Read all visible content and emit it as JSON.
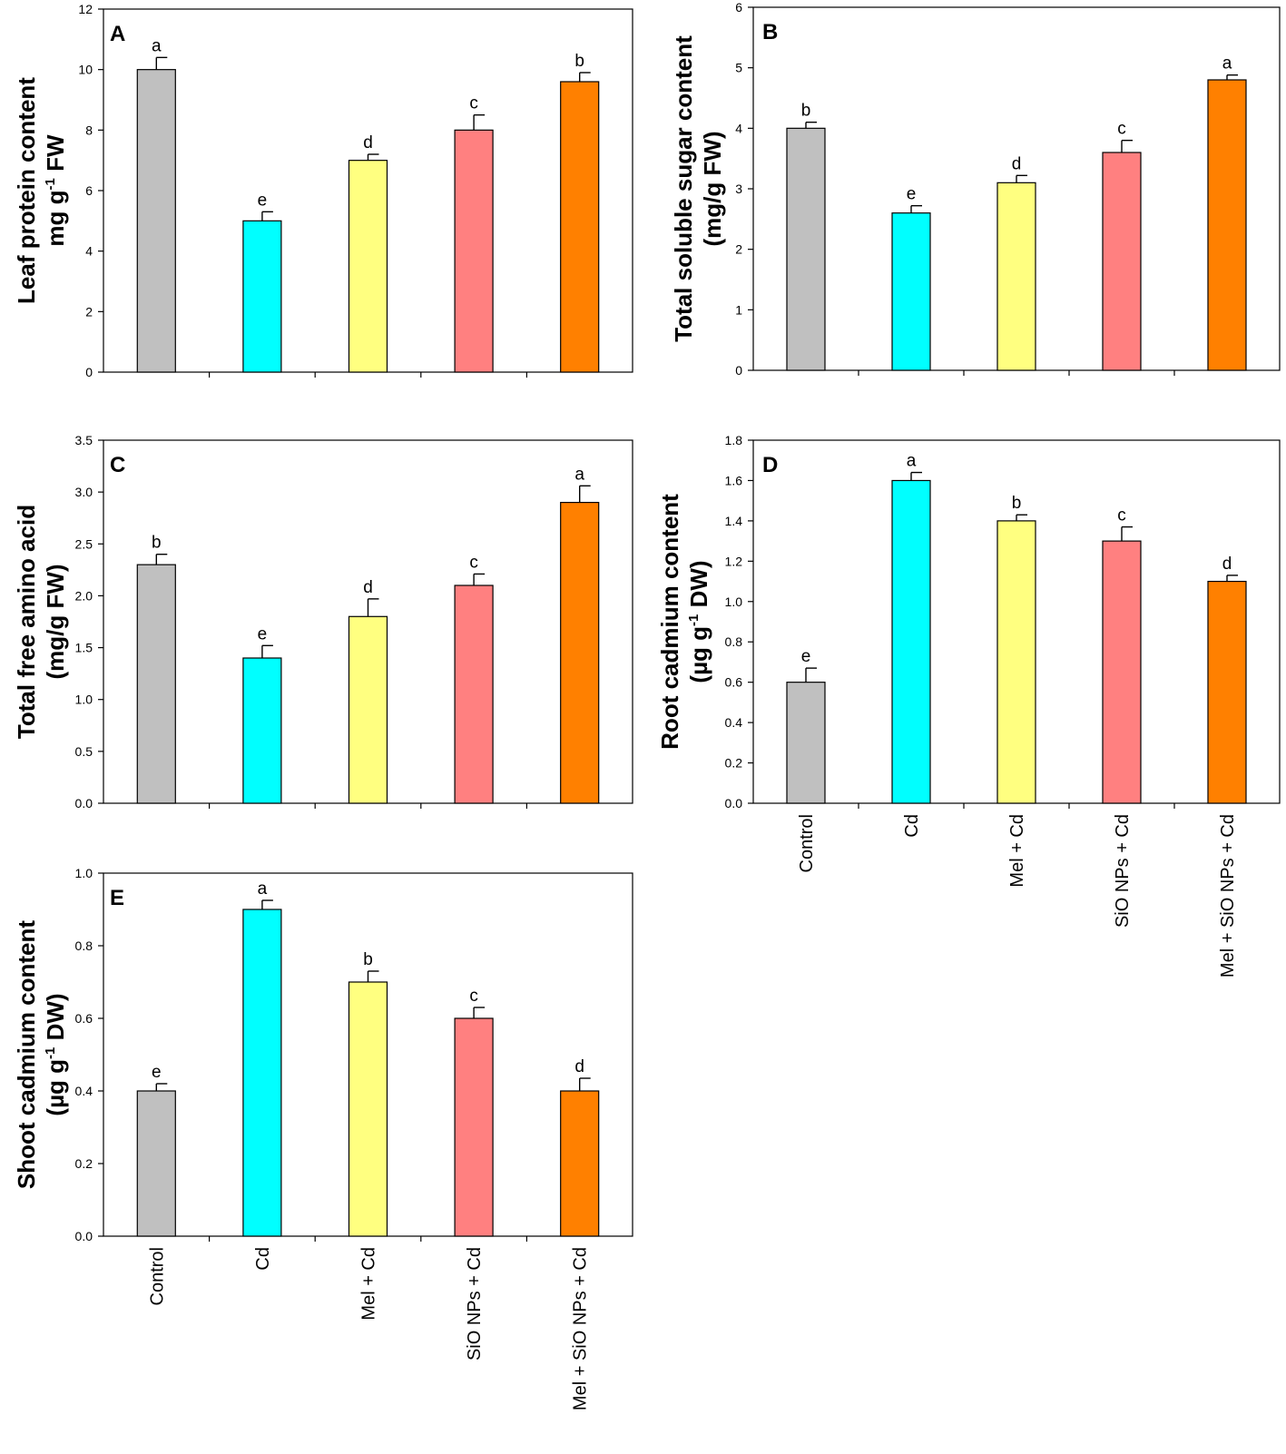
{
  "categories": [
    "Control",
    "Cd",
    "Mel + Cd",
    "SiO NPs + Cd",
    "Mel + SiO NPs + Cd"
  ],
  "colors": [
    "#c0c0c0",
    "#00ffff",
    "#ffff80",
    "#ff8080",
    "#ff8000"
  ],
  "chart_data": [
    {
      "type": "bar",
      "panel": "A",
      "ylabel_lines": [
        [
          "Leaf protein content"
        ],
        [
          "mg g",
          "-1",
          " FW"
        ]
      ],
      "ylim": [
        0,
        12
      ],
      "yticks": [
        0,
        2,
        4,
        6,
        8,
        10,
        12
      ],
      "decimals": 0,
      "values": [
        10.0,
        5.0,
        7.0,
        8.0,
        9.6
      ],
      "errors": [
        0.4,
        0.3,
        0.2,
        0.5,
        0.3
      ],
      "letters": [
        "a",
        "e",
        "d",
        "c",
        "b"
      ],
      "show_categories": false
    },
    {
      "type": "bar",
      "panel": "B",
      "ylabel_lines": [
        [
          "Total soluble sugar content"
        ],
        [
          "(mg/g FW)"
        ]
      ],
      "ylim": [
        0,
        6
      ],
      "yticks": [
        0,
        1,
        2,
        3,
        4,
        5,
        6
      ],
      "decimals": 0,
      "values": [
        4.0,
        2.6,
        3.1,
        3.6,
        4.8
      ],
      "errors": [
        0.1,
        0.12,
        0.12,
        0.2,
        0.08
      ],
      "letters": [
        "b",
        "e",
        "d",
        "c",
        "a"
      ],
      "show_categories": false
    },
    {
      "type": "bar",
      "panel": "C",
      "ylabel_lines": [
        [
          "Total free amino acid"
        ],
        [
          "(mg/g FW)"
        ]
      ],
      "ylim": [
        0,
        3.5
      ],
      "yticks": [
        0.0,
        0.5,
        1.0,
        1.5,
        2.0,
        2.5,
        3.0,
        3.5
      ],
      "decimals": 1,
      "values": [
        2.3,
        1.4,
        1.8,
        2.1,
        2.9
      ],
      "errors": [
        0.1,
        0.12,
        0.17,
        0.11,
        0.16
      ],
      "letters": [
        "b",
        "e",
        "d",
        "c",
        "a"
      ],
      "show_categories": false
    },
    {
      "type": "bar",
      "panel": "D",
      "ylabel_lines": [
        [
          "Root cadmium content"
        ],
        [
          "(µg g",
          "-1",
          " DW)"
        ]
      ],
      "ylim": [
        0,
        1.8
      ],
      "yticks": [
        0.0,
        0.2,
        0.4,
        0.6,
        0.8,
        1.0,
        1.2,
        1.4,
        1.6,
        1.8
      ],
      "decimals": 1,
      "values": [
        0.6,
        1.6,
        1.4,
        1.3,
        1.1
      ],
      "errors": [
        0.07,
        0.04,
        0.03,
        0.07,
        0.03
      ],
      "letters": [
        "e",
        "a",
        "b",
        "c",
        "d"
      ],
      "show_categories": true
    },
    {
      "type": "bar",
      "panel": "E",
      "ylabel_lines": [
        [
          "Shoot cadmium content"
        ],
        [
          "(µg g",
          "-1",
          " DW)"
        ]
      ],
      "ylim": [
        0,
        1.0
      ],
      "yticks": [
        0.0,
        0.2,
        0.4,
        0.6,
        0.8,
        1.0
      ],
      "decimals": 1,
      "values": [
        0.4,
        0.9,
        0.7,
        0.6,
        0.4
      ],
      "errors": [
        0.02,
        0.025,
        0.03,
        0.03,
        0.035
      ],
      "letters": [
        "e",
        "a",
        "b",
        "c",
        "d"
      ],
      "show_categories": true
    }
  ]
}
